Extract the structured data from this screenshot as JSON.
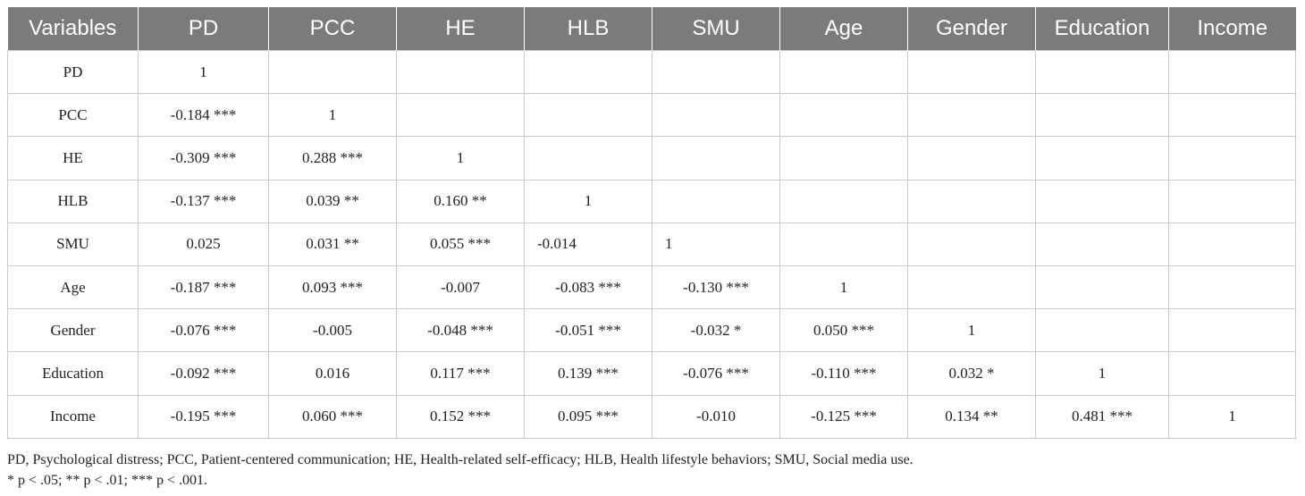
{
  "table": {
    "headers": [
      "Variables",
      "PD",
      "PCC",
      "HE",
      "HLB",
      "SMU",
      "Age",
      "Gender",
      "Education",
      "Income"
    ],
    "rows": [
      [
        "PD",
        "1",
        "",
        "",
        "",
        "",
        "",
        "",
        "",
        ""
      ],
      [
        "PCC",
        "-0.184 ***",
        "1",
        "",
        "",
        "",
        "",
        "",
        "",
        ""
      ],
      [
        "HE",
        "-0.309 ***",
        "0.288 ***",
        "1",
        "",
        "",
        "",
        "",
        "",
        ""
      ],
      [
        "HLB",
        "-0.137 ***",
        "0.039 **",
        "0.160 **",
        "1",
        "",
        "",
        "",
        "",
        ""
      ],
      [
        "SMU",
        "0.025",
        "0.031 **",
        "0.055 ***",
        "-0.014",
        "1",
        "",
        "",
        "",
        ""
      ],
      [
        "Age",
        "-0.187 ***",
        "0.093 ***",
        "-0.007",
        "-0.083 ***",
        "-0.130 ***",
        "1",
        "",
        "",
        ""
      ],
      [
        "Gender",
        "-0.076 ***",
        "-0.005",
        "-0.048 ***",
        "-0.051 ***",
        "-0.032 *",
        "0.050 ***",
        "1",
        "",
        ""
      ],
      [
        "Education",
        "-0.092 ***",
        "0.016",
        "0.117 ***",
        "0.139 ***",
        "-0.076 ***",
        "-0.110 ***",
        "0.032 *",
        "1",
        ""
      ],
      [
        "Income",
        "-0.195 ***",
        "0.060 ***",
        "0.152 ***",
        "0.095 ***",
        "-0.010",
        "-0.125 ***",
        "0.134 **",
        "0.481 ***",
        "1"
      ]
    ]
  },
  "notes": {
    "abbreviations": "PD, Psychological distress; PCC, Patient-centered communication; HE, Health-related self-efficacy; HLB, Health lifestyle behaviors; SMU, Social media use.",
    "significance": "* p < .05; ** p < .01; *** p < .001."
  }
}
